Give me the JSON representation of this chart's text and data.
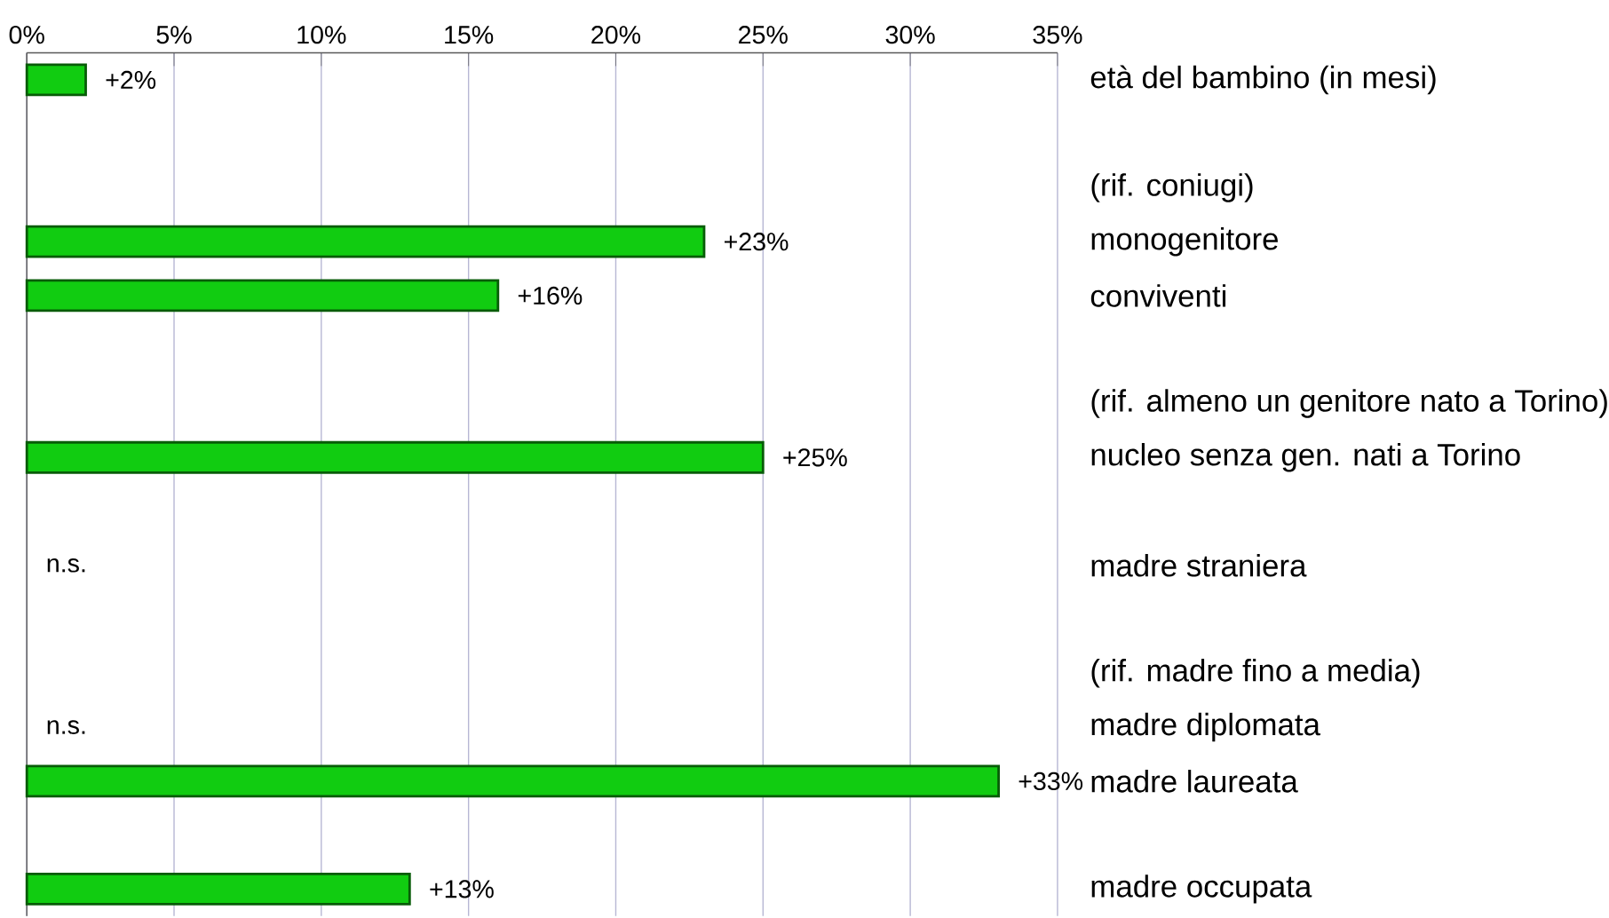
{
  "chart_data": {
    "type": "bar",
    "orientation": "horizontal",
    "categories": [
      "età del bambino (in mesi)",
      null,
      "(rif. coniugi)",
      "monogenitore",
      "conviventi",
      null,
      "(rif. almeno un genitore nato a Torino)",
      "nucleo senza gen. nati a Torino",
      null,
      "madre straniera",
      null,
      "(rif. madre fino a media)",
      "madre diplomata",
      "madre laureata",
      null,
      "madre occupata"
    ],
    "values": [
      2,
      null,
      null,
      23,
      16,
      null,
      null,
      25,
      null,
      null,
      null,
      null,
      null,
      33,
      null,
      13
    ],
    "value_labels": [
      "+2%",
      null,
      null,
      "+23%",
      "+16%",
      null,
      null,
      "+25%",
      null,
      "n.s.",
      null,
      null,
      "n.s.",
      "+33%",
      null,
      "+13%"
    ],
    "color": "#11cc11",
    "xlim": [
      0,
      35
    ],
    "xticks": [
      {
        "value": 0,
        "label": "0%"
      },
      {
        "value": 5,
        "label": "5%"
      },
      {
        "value": 10,
        "label": "10%"
      },
      {
        "value": 15,
        "label": "15%"
      },
      {
        "value": 20,
        "label": "20%"
      },
      {
        "value": 25,
        "label": "25%"
      },
      {
        "value": 30,
        "label": "30%"
      },
      {
        "value": 35,
        "label": "35%"
      }
    ],
    "grid": "x"
  }
}
